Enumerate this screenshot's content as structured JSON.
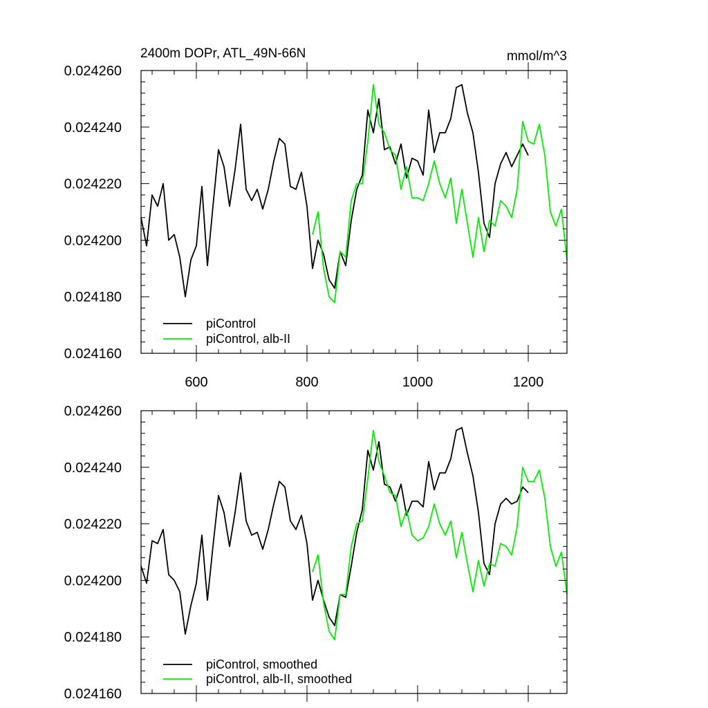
{
  "chart_data": [
    {
      "type": "line",
      "title_left": "2400m DOPr, ATL_49N-66N",
      "title_right": "mmol/m^3",
      "xlabel": "",
      "ylabel": "",
      "xlim": [
        500,
        1270
      ],
      "ylim": [
        0.02416,
        0.02426
      ],
      "xticks": [
        600,
        800,
        1000,
        1200
      ],
      "xtick_labels": [
        "600",
        "800",
        "1000",
        "1200"
      ],
      "yticks": [
        0.02416,
        0.02418,
        0.0242,
        0.02422,
        0.02424,
        0.02426
      ],
      "ytick_labels": [
        "0.024160",
        "0.024180",
        "0.024200",
        "0.024220",
        "0.024240",
        "0.024260"
      ],
      "legend_position": "bottom-left",
      "colors": {
        "piControl": "#000000",
        "alb": "#00ee00"
      },
      "series": [
        {
          "name": "piControl",
          "color": "#000000",
          "x": [
            500,
            510,
            520,
            530,
            540,
            550,
            560,
            570,
            580,
            590,
            600,
            610,
            620,
            630,
            640,
            650,
            660,
            670,
            680,
            690,
            700,
            710,
            720,
            730,
            740,
            750,
            760,
            770,
            780,
            790,
            800,
            810,
            820,
            830,
            840,
            850,
            860,
            870,
            880,
            890,
            900,
            910,
            920,
            930,
            940,
            950,
            960,
            970,
            980,
            990,
            1000,
            1010,
            1020,
            1030,
            1040,
            1050,
            1060,
            1070,
            1080,
            1090,
            1100,
            1110,
            1120,
            1130,
            1140,
            1150,
            1160,
            1170,
            1180,
            1190,
            1200
          ],
          "y": [
            0.024208,
            0.024198,
            0.024216,
            0.024212,
            0.02422,
            0.0242,
            0.024202,
            0.024194,
            0.02418,
            0.024193,
            0.024198,
            0.024219,
            0.024191,
            0.024212,
            0.024232,
            0.024226,
            0.024212,
            0.024225,
            0.024241,
            0.024218,
            0.024214,
            0.024218,
            0.024211,
            0.024218,
            0.024228,
            0.024236,
            0.024234,
            0.024219,
            0.024218,
            0.024224,
            0.024212,
            0.02419,
            0.0242,
            0.024195,
            0.024186,
            0.024183,
            0.024196,
            0.024191,
            0.024207,
            0.024218,
            0.024223,
            0.024246,
            0.024238,
            0.02425,
            0.024232,
            0.024233,
            0.024227,
            0.024234,
            0.024222,
            0.024229,
            0.024228,
            0.024223,
            0.024246,
            0.024231,
            0.024238,
            0.024238,
            0.024243,
            0.024254,
            0.024255,
            0.024245,
            0.024238,
            0.024224,
            0.024206,
            0.024201,
            0.02422,
            0.024227,
            0.024231,
            0.024226,
            0.02423,
            0.024234,
            0.02423
          ]
        },
        {
          "name": "piControl, alb-II",
          "color": "#00ee00",
          "x": [
            810,
            820,
            830,
            840,
            850,
            860,
            870,
            880,
            890,
            900,
            910,
            920,
            930,
            940,
            950,
            960,
            970,
            980,
            990,
            1000,
            1010,
            1020,
            1030,
            1040,
            1050,
            1060,
            1070,
            1080,
            1090,
            1100,
            1110,
            1120,
            1130,
            1140,
            1150,
            1160,
            1170,
            1180,
            1190,
            1200,
            1210,
            1220,
            1230,
            1240,
            1250,
            1260,
            1270
          ],
          "y": [
            0.024202,
            0.02421,
            0.02419,
            0.02418,
            0.024178,
            0.024196,
            0.024194,
            0.024214,
            0.02422,
            0.02422,
            0.024235,
            0.024255,
            0.024241,
            0.024238,
            0.024232,
            0.02423,
            0.024218,
            0.024226,
            0.024215,
            0.024215,
            0.024214,
            0.02422,
            0.024228,
            0.02422,
            0.024215,
            0.024222,
            0.024206,
            0.024218,
            0.024206,
            0.024194,
            0.024208,
            0.024196,
            0.024207,
            0.024205,
            0.024214,
            0.024212,
            0.024208,
            0.024218,
            0.024242,
            0.024235,
            0.024234,
            0.024241,
            0.02423,
            0.02421,
            0.024205,
            0.024211,
            0.024193
          ]
        }
      ],
      "legend": [
        {
          "label": "piControl",
          "color": "#000000"
        },
        {
          "label": "piControl, alb-II",
          "color": "#00ee00"
        }
      ]
    },
    {
      "type": "line",
      "title_left": "",
      "title_right": "",
      "xlabel": "",
      "ylabel": "",
      "xlim": [
        500,
        1270
      ],
      "ylim": [
        0.02416,
        0.02426
      ],
      "xticks": [
        600,
        800,
        1000,
        1200
      ],
      "xtick_labels": [],
      "yticks": [
        0.02416,
        0.02418,
        0.0242,
        0.02422,
        0.02424,
        0.02426
      ],
      "ytick_labels": [
        "0.024160",
        "0.024180",
        "0.024200",
        "0.024220",
        "0.024240",
        "0.024260"
      ],
      "legend_position": "bottom-left",
      "series": [
        {
          "name": "piControl, smoothed",
          "color": "#000000",
          "x": [
            500,
            510,
            520,
            530,
            540,
            550,
            560,
            570,
            580,
            590,
            600,
            610,
            620,
            630,
            640,
            650,
            660,
            670,
            680,
            690,
            700,
            710,
            720,
            730,
            740,
            750,
            760,
            770,
            780,
            790,
            800,
            810,
            820,
            830,
            840,
            850,
            860,
            870,
            880,
            890,
            900,
            910,
            920,
            930,
            940,
            950,
            960,
            970,
            980,
            990,
            1000,
            1010,
            1020,
            1030,
            1040,
            1050,
            1060,
            1070,
            1080,
            1090,
            1100,
            1110,
            1120,
            1130,
            1140,
            1150,
            1160,
            1170,
            1180,
            1190,
            1200
          ],
          "y": [
            0.024205,
            0.024199,
            0.024214,
            0.024213,
            0.024218,
            0.024202,
            0.0242,
            0.024196,
            0.024181,
            0.024191,
            0.024199,
            0.024216,
            0.024193,
            0.024212,
            0.02423,
            0.024224,
            0.024212,
            0.024224,
            0.024238,
            0.024221,
            0.024216,
            0.024217,
            0.024211,
            0.024218,
            0.024227,
            0.024235,
            0.024233,
            0.024221,
            0.024218,
            0.024223,
            0.024213,
            0.024193,
            0.0242,
            0.024193,
            0.024187,
            0.024184,
            0.024195,
            0.024194,
            0.024205,
            0.024217,
            0.024225,
            0.024246,
            0.024239,
            0.024249,
            0.024234,
            0.024233,
            0.024228,
            0.024234,
            0.024223,
            0.024228,
            0.024228,
            0.024226,
            0.024242,
            0.024232,
            0.024238,
            0.024238,
            0.024243,
            0.024253,
            0.024254,
            0.024245,
            0.024237,
            0.024224,
            0.024206,
            0.024202,
            0.02422,
            0.024227,
            0.024229,
            0.024227,
            0.024228,
            0.024233,
            0.024231
          ]
        },
        {
          "name": "piControl, alb-II, smoothed",
          "color": "#00ee00",
          "x": [
            810,
            820,
            830,
            840,
            850,
            860,
            870,
            880,
            890,
            900,
            910,
            920,
            930,
            940,
            950,
            960,
            970,
            980,
            990,
            1000,
            1010,
            1020,
            1030,
            1040,
            1050,
            1060,
            1070,
            1080,
            1090,
            1100,
            1110,
            1120,
            1130,
            1140,
            1150,
            1160,
            1170,
            1180,
            1190,
            1200,
            1210,
            1220,
            1230,
            1240,
            1250,
            1260,
            1270
          ],
          "y": [
            0.024203,
            0.024209,
            0.024192,
            0.024182,
            0.024179,
            0.024195,
            0.024195,
            0.024212,
            0.02422,
            0.024221,
            0.024236,
            0.024253,
            0.024242,
            0.024237,
            0.024231,
            0.02423,
            0.024219,
            0.024225,
            0.024216,
            0.024214,
            0.024215,
            0.024219,
            0.024227,
            0.02422,
            0.024216,
            0.024221,
            0.024208,
            0.024217,
            0.024206,
            0.024196,
            0.024207,
            0.024198,
            0.024206,
            0.024205,
            0.024213,
            0.024212,
            0.024209,
            0.024219,
            0.02424,
            0.024235,
            0.024235,
            0.024239,
            0.024229,
            0.024212,
            0.024205,
            0.02421,
            0.024195
          ]
        }
      ],
      "legend": [
        {
          "label": "piControl, smoothed",
          "color": "#000000"
        },
        {
          "label": "piControl, alb-II, smoothed",
          "color": "#00ee00"
        }
      ]
    }
  ]
}
